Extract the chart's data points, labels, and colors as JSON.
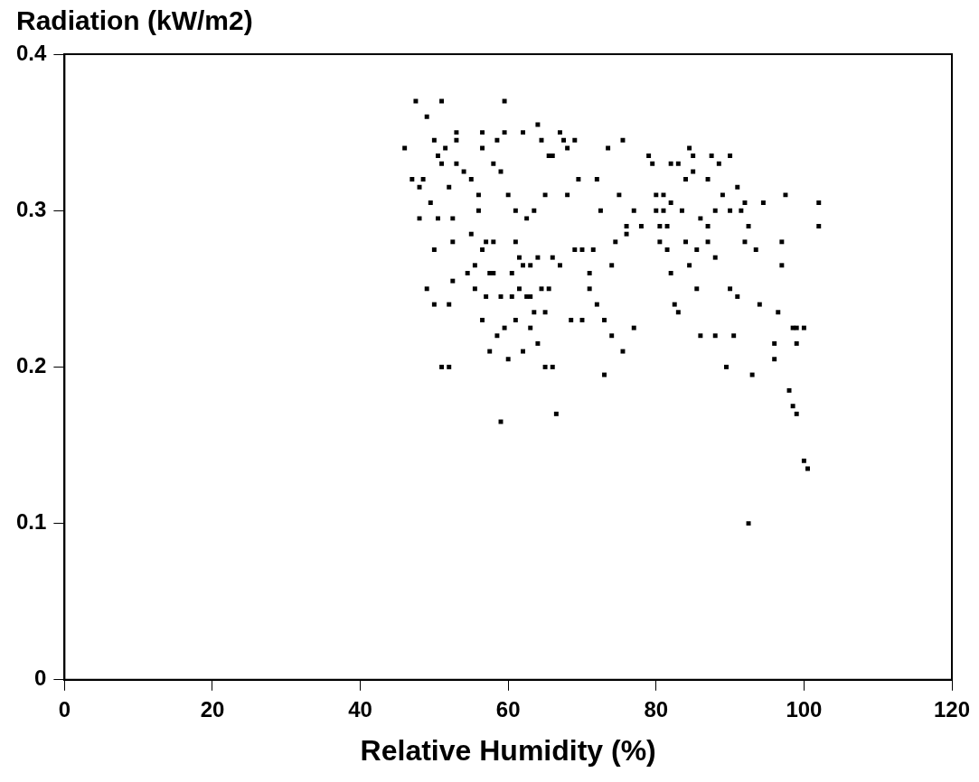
{
  "chart_data": {
    "type": "scatter",
    "ylabel": "Radiation (kW/m2)",
    "xlabel": "Relative Humidity (%)",
    "xlim": [
      0,
      120
    ],
    "xticks": [
      0,
      20,
      40,
      60,
      80,
      100,
      120
    ],
    "ylim": [
      0,
      0.4
    ],
    "yticks": [
      0,
      0.1,
      0.2,
      0.3,
      0.4
    ],
    "grid": false,
    "marker": "square",
    "legend": false,
    "series": [
      {
        "color": "#000000",
        "x": [
          46,
          47,
          47.5,
          48,
          48,
          48.5,
          49,
          49,
          49.5,
          50,
          50,
          50,
          50.5,
          50.5,
          51,
          51,
          51,
          51.5,
          52,
          52,
          52,
          52.5,
          52.5,
          52.5,
          53,
          53,
          53,
          54,
          54.5,
          55,
          55,
          55.5,
          55.5,
          56,
          56,
          56.5,
          56.5,
          56.5,
          56.5,
          57,
          57,
          57.5,
          57.5,
          58,
          58,
          58,
          58.5,
          58.5,
          59,
          59,
          59,
          59.5,
          59.5,
          59.5,
          60,
          60,
          60.5,
          60.5,
          61,
          61,
          61,
          61.5,
          61.5,
          62,
          62,
          62,
          62.5,
          62.5,
          63,
          63,
          63,
          63.5,
          63.5,
          64,
          64,
          64,
          64.5,
          64.5,
          65,
          65,
          65,
          65.5,
          65.5,
          66,
          66,
          66,
          66.5,
          67,
          67,
          67.5,
          68,
          68,
          68.5,
          69,
          69,
          69.5,
          70,
          70,
          71,
          71,
          71.5,
          72,
          72,
          72.5,
          73,
          73,
          73.5,
          74,
          74,
          74.5,
          75,
          75.5,
          75.5,
          76,
          76,
          77,
          77,
          78,
          79,
          79.5,
          80,
          80,
          80.5,
          80.5,
          81,
          81,
          81.5,
          81.5,
          82,
          82,
          82,
          82.5,
          83,
          83,
          83.5,
          84,
          84,
          84.5,
          84.5,
          85,
          85,
          85.5,
          85.5,
          86,
          86,
          87,
          87,
          87,
          87.5,
          88,
          88,
          88,
          88.5,
          89,
          89.5,
          90,
          90,
          90,
          90.5,
          91,
          91,
          91.5,
          92,
          92,
          92.5,
          92.5,
          93,
          93.5,
          94,
          94.5,
          96,
          96,
          96.5,
          97,
          97,
          97.5,
          98,
          98.5,
          98.5,
          99,
          99,
          99,
          100,
          100.5,
          100,
          102,
          102
        ],
        "values": [
          0.34,
          0.32,
          0.37,
          0.315,
          0.295,
          0.32,
          0.36,
          0.25,
          0.305,
          0.345,
          0.275,
          0.24,
          0.335,
          0.295,
          0.37,
          0.33,
          0.2,
          0.34,
          0.2,
          0.24,
          0.315,
          0.28,
          0.255,
          0.295,
          0.345,
          0.33,
          0.35,
          0.325,
          0.26,
          0.32,
          0.285,
          0.25,
          0.265,
          0.31,
          0.3,
          0.35,
          0.34,
          0.275,
          0.23,
          0.245,
          0.28,
          0.26,
          0.21,
          0.33,
          0.28,
          0.26,
          0.345,
          0.22,
          0.325,
          0.245,
          0.165,
          0.37,
          0.35,
          0.225,
          0.31,
          0.205,
          0.26,
          0.245,
          0.3,
          0.28,
          0.23,
          0.27,
          0.25,
          0.35,
          0.265,
          0.21,
          0.295,
          0.245,
          0.265,
          0.225,
          0.245,
          0.3,
          0.235,
          0.355,
          0.27,
          0.215,
          0.345,
          0.25,
          0.31,
          0.2,
          0.235,
          0.335,
          0.25,
          0.335,
          0.27,
          0.2,
          0.17,
          0.35,
          0.265,
          0.345,
          0.34,
          0.31,
          0.23,
          0.345,
          0.275,
          0.32,
          0.23,
          0.275,
          0.25,
          0.26,
          0.275,
          0.32,
          0.24,
          0.3,
          0.23,
          0.195,
          0.34,
          0.265,
          0.22,
          0.28,
          0.31,
          0.345,
          0.21,
          0.29,
          0.285,
          0.3,
          0.225,
          0.29,
          0.335,
          0.33,
          0.31,
          0.3,
          0.28,
          0.29,
          0.3,
          0.31,
          0.29,
          0.275,
          0.33,
          0.305,
          0.26,
          0.24,
          0.235,
          0.33,
          0.3,
          0.32,
          0.28,
          0.34,
          0.265,
          0.335,
          0.325,
          0.275,
          0.25,
          0.295,
          0.22,
          0.32,
          0.29,
          0.28,
          0.335,
          0.3,
          0.27,
          0.22,
          0.33,
          0.31,
          0.2,
          0.335,
          0.25,
          0.3,
          0.22,
          0.315,
          0.245,
          0.3,
          0.305,
          0.28,
          0.29,
          0.1,
          0.195,
          0.275,
          0.24,
          0.305,
          0.215,
          0.205,
          0.235,
          0.28,
          0.265,
          0.31,
          0.185,
          0.225,
          0.175,
          0.215,
          0.17,
          0.225,
          0.14,
          0.135,
          0.225,
          0.305,
          0.29
        ]
      }
    ]
  }
}
